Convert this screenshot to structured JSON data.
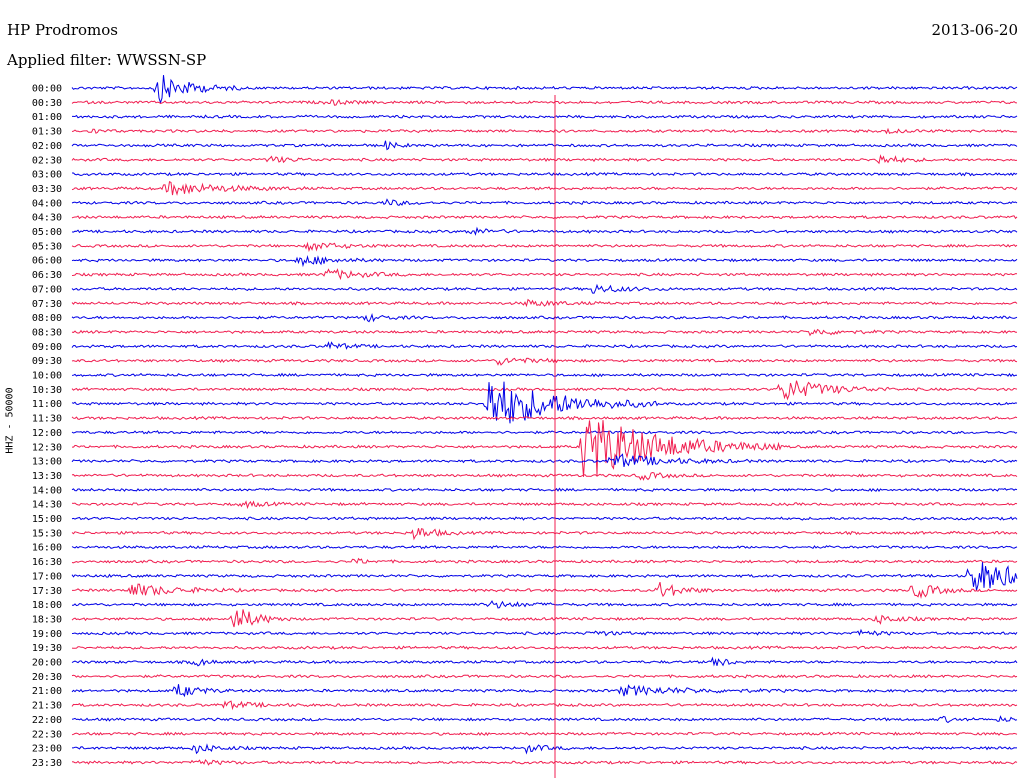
{
  "header": {
    "station": "HP Prodromos",
    "date": "2013-06-20",
    "filter": "Applied filter: WWSSN-SP"
  },
  "chart_data": {
    "type": "line",
    "ylabel": "HHZ - 50000",
    "time_labels": [
      "00:00",
      "00:30",
      "01:00",
      "01:30",
      "02:00",
      "02:30",
      "03:00",
      "03:30",
      "04:00",
      "04:30",
      "05:00",
      "05:30",
      "06:00",
      "06:30",
      "07:00",
      "07:30",
      "08:00",
      "08:30",
      "09:00",
      "09:30",
      "10:00",
      "10:30",
      "11:00",
      "11:30",
      "12:00",
      "12:30",
      "13:00",
      "13:30",
      "14:00",
      "14:30",
      "15:00",
      "15:30",
      "16:00",
      "16:30",
      "17:00",
      "17:30",
      "18:00",
      "18:30",
      "19:00",
      "19:30",
      "20:00",
      "20:30",
      "21:00",
      "21:30",
      "22:00",
      "22:30",
      "23:00",
      "23:30"
    ],
    "colors": {
      "even": "#0000e6",
      "odd": "#f01e50",
      "label": "#000000"
    },
    "x_range_minutes": [
      0,
      30
    ],
    "events": [
      {
        "row": 0,
        "x": 0.09,
        "amp": 2.5,
        "dur": 0.03
      },
      {
        "row": 1,
        "x": 0.27,
        "amp": 0.4,
        "dur": 0.02
      },
      {
        "row": 3,
        "x": 0.02,
        "amp": 0.4,
        "dur": 0.01
      },
      {
        "row": 3,
        "x": 0.86,
        "amp": 0.3,
        "dur": 0.02
      },
      {
        "row": 4,
        "x": 0.33,
        "amp": 0.8,
        "dur": 0.01
      },
      {
        "row": 5,
        "x": 0.21,
        "amp": 0.5,
        "dur": 0.02
      },
      {
        "row": 5,
        "x": 0.85,
        "amp": 0.9,
        "dur": 0.02
      },
      {
        "row": 7,
        "x": 0.1,
        "amp": 1.2,
        "dur": 0.05
      },
      {
        "row": 8,
        "x": 0.33,
        "amp": 0.5,
        "dur": 0.02
      },
      {
        "row": 10,
        "x": 0.42,
        "amp": 0.6,
        "dur": 0.02
      },
      {
        "row": 11,
        "x": 0.25,
        "amp": 0.7,
        "dur": 0.03
      },
      {
        "row": 12,
        "x": 0.24,
        "amp": 0.9,
        "dur": 0.03
      },
      {
        "row": 13,
        "x": 0.27,
        "amp": 0.9,
        "dur": 0.03
      },
      {
        "row": 14,
        "x": 0.55,
        "amp": 0.7,
        "dur": 0.03
      },
      {
        "row": 15,
        "x": 0.48,
        "amp": 0.5,
        "dur": 0.03
      },
      {
        "row": 16,
        "x": 0.31,
        "amp": 0.6,
        "dur": 0.02
      },
      {
        "row": 17,
        "x": 0.78,
        "amp": 0.5,
        "dur": 0.03
      },
      {
        "row": 18,
        "x": 0.27,
        "amp": 0.6,
        "dur": 0.02
      },
      {
        "row": 19,
        "x": 0.45,
        "amp": 0.6,
        "dur": 0.03
      },
      {
        "row": 21,
        "x": 0.75,
        "amp": 2.0,
        "dur": 0.04
      },
      {
        "row": 22,
        "x": 0.44,
        "amp": 5.0,
        "dur": 0.06
      },
      {
        "row": 25,
        "x": 0.54,
        "amp": 6.0,
        "dur": 0.07
      },
      {
        "row": 26,
        "x": 0.57,
        "amp": 1.2,
        "dur": 0.05
      },
      {
        "row": 27,
        "x": 0.6,
        "amp": 0.7,
        "dur": 0.02
      },
      {
        "row": 29,
        "x": 0.18,
        "amp": 0.5,
        "dur": 0.02
      },
      {
        "row": 31,
        "x": 0.36,
        "amp": 1.2,
        "dur": 0.02
      },
      {
        "row": 33,
        "x": 0.3,
        "amp": 0.5,
        "dur": 0.01
      },
      {
        "row": 34,
        "x": 0.95,
        "amp": 3.0,
        "dur": 0.05
      },
      {
        "row": 35,
        "x": 0.06,
        "amp": 1.2,
        "dur": 0.04
      },
      {
        "row": 35,
        "x": 0.62,
        "amp": 1.5,
        "dur": 0.02
      },
      {
        "row": 35,
        "x": 0.89,
        "amp": 1.5,
        "dur": 0.02
      },
      {
        "row": 36,
        "x": 0.44,
        "amp": 0.6,
        "dur": 0.03
      },
      {
        "row": 37,
        "x": 0.17,
        "amp": 2.5,
        "dur": 0.02
      },
      {
        "row": 37,
        "x": 0.85,
        "amp": 0.8,
        "dur": 0.02
      },
      {
        "row": 38,
        "x": 0.55,
        "amp": 0.4,
        "dur": 0.02
      },
      {
        "row": 38,
        "x": 0.83,
        "amp": 0.5,
        "dur": 0.02
      },
      {
        "row": 40,
        "x": 0.13,
        "amp": 0.8,
        "dur": 0.01
      },
      {
        "row": 40,
        "x": 0.68,
        "amp": 1.2,
        "dur": 0.01
      },
      {
        "row": 42,
        "x": 0.11,
        "amp": 1.2,
        "dur": 0.02
      },
      {
        "row": 42,
        "x": 0.58,
        "amp": 0.8,
        "dur": 0.06
      },
      {
        "row": 43,
        "x": 0.16,
        "amp": 0.6,
        "dur": 0.03
      },
      {
        "row": 44,
        "x": 0.92,
        "amp": 0.5,
        "dur": 0.01
      },
      {
        "row": 44,
        "x": 0.98,
        "amp": 0.5,
        "dur": 0.01
      },
      {
        "row": 46,
        "x": 0.13,
        "amp": 0.8,
        "dur": 0.02
      },
      {
        "row": 46,
        "x": 0.48,
        "amp": 0.6,
        "dur": 0.02
      },
      {
        "row": 47,
        "x": 0.13,
        "amp": 0.5,
        "dur": 0.02
      }
    ]
  }
}
